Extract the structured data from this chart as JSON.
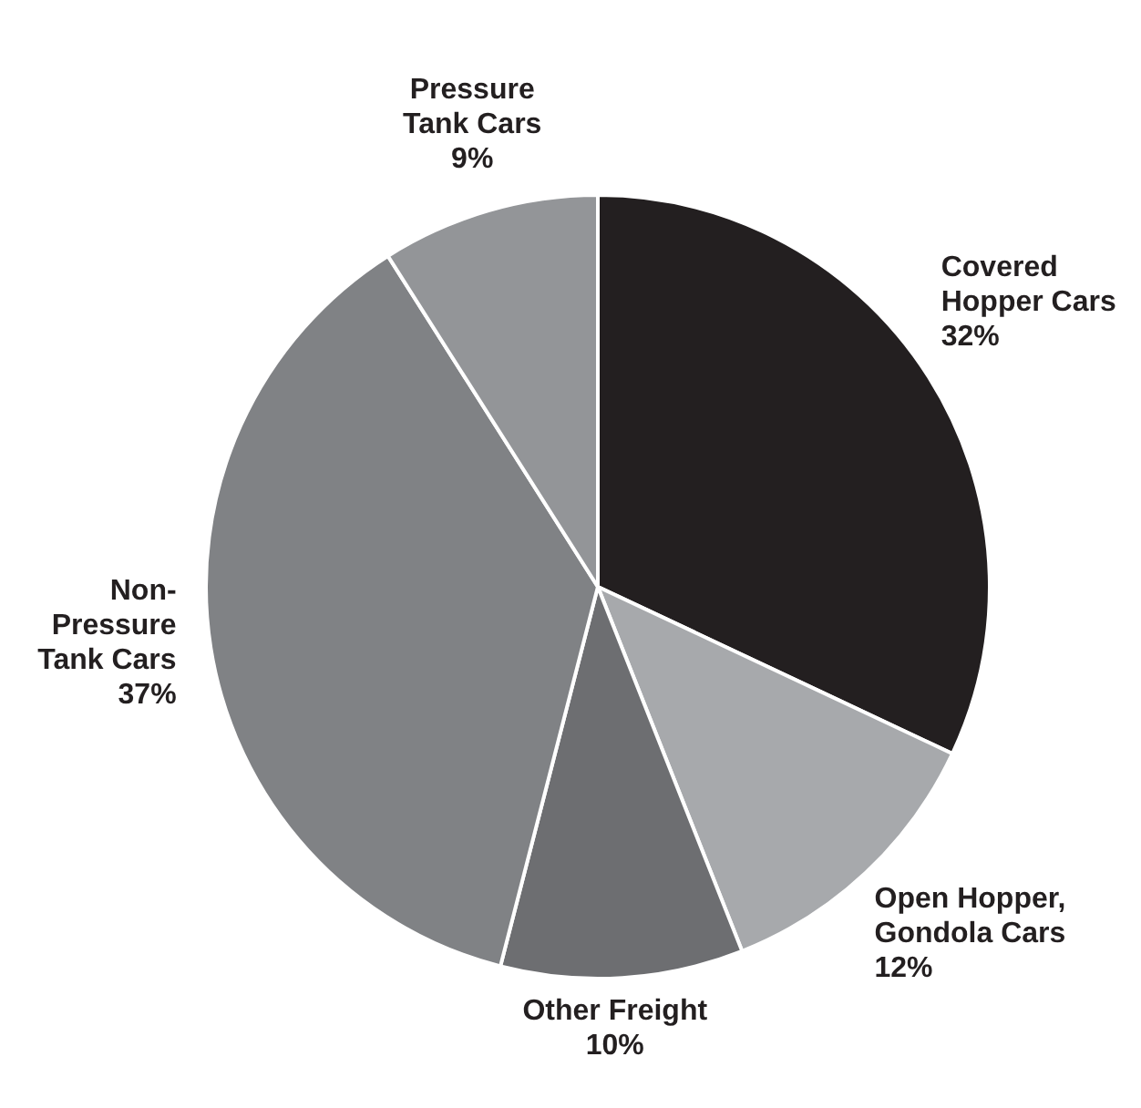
{
  "chart_data": {
    "type": "pie",
    "categories": [
      "Covered\nHopper Cars",
      "Open Hopper,\nGondola Cars",
      "Other Freight",
      "Non-\nPressure\nTank Cars",
      "Pressure\nTank Cars"
    ],
    "values": [
      32,
      12,
      10,
      37,
      9
    ],
    "value_labels": [
      "32%",
      "12%",
      "10%",
      "37%",
      "9%"
    ],
    "colors": [
      "#231f20",
      "#a7a9ac",
      "#6d6e71",
      "#808285",
      "#939598"
    ],
    "legend": false
  }
}
